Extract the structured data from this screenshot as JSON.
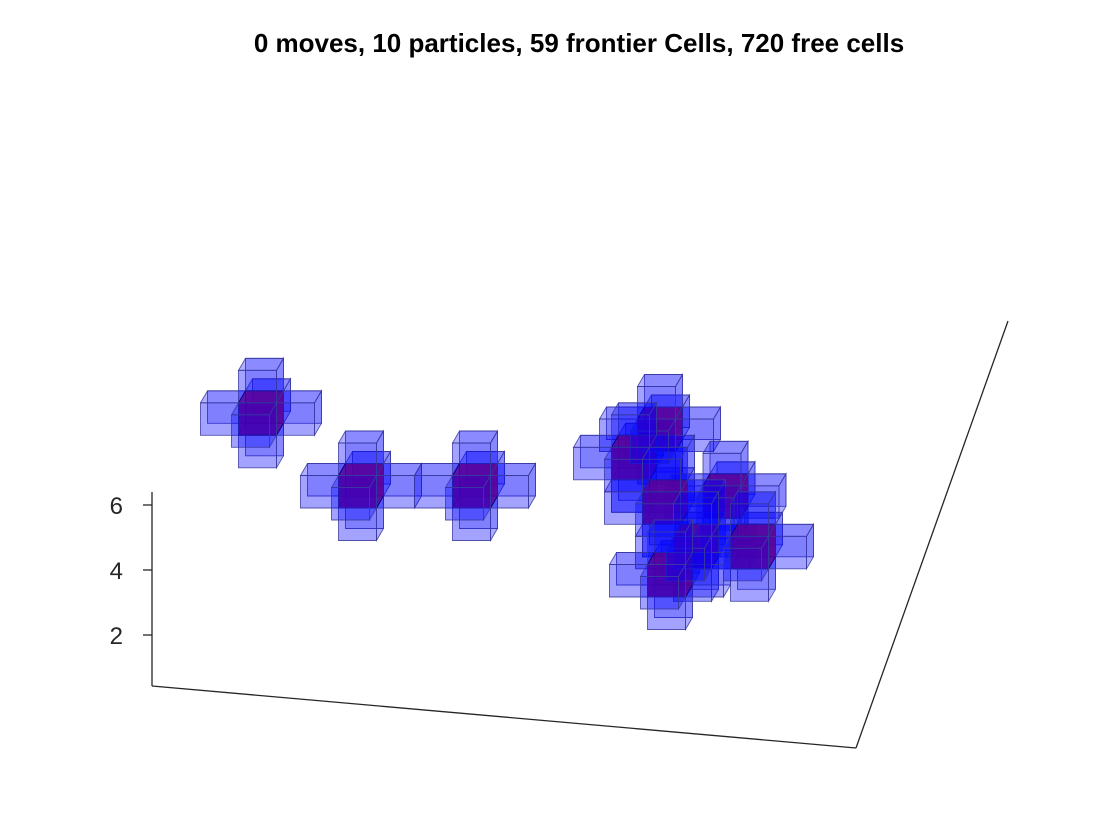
{
  "chart_data": {
    "type": "3d-voxel",
    "title": "0 moves, 10 particles, 59 frontier Cells, 720 free cells",
    "zticks": [
      "2",
      "4",
      "6"
    ],
    "zlim": [
      0,
      6.5
    ],
    "grid": false,
    "colors": {
      "particle": "#8b0060",
      "frontier": "#0000ff",
      "edge": "#000000"
    },
    "particles": [
      {
        "x": 2.0,
        "y": 6.0,
        "z": 6.0
      },
      {
        "x": 5.0,
        "y": 4.0,
        "z": 4.5
      },
      {
        "x": 8.0,
        "y": 4.0,
        "z": 4.5
      },
      {
        "x": 12.5,
        "y": 6.0,
        "z": 5.5
      },
      {
        "x": 12.0,
        "y": 5.0,
        "z": 5.0
      },
      {
        "x": 13.0,
        "y": 4.0,
        "z": 4.0
      },
      {
        "x": 14.5,
        "y": 4.5,
        "z": 4.0
      },
      {
        "x": 14.0,
        "y": 3.0,
        "z": 3.0
      },
      {
        "x": 15.5,
        "y": 3.0,
        "z": 3.0
      },
      {
        "x": 13.5,
        "y": 2.0,
        "z": 2.5
      }
    ]
  }
}
